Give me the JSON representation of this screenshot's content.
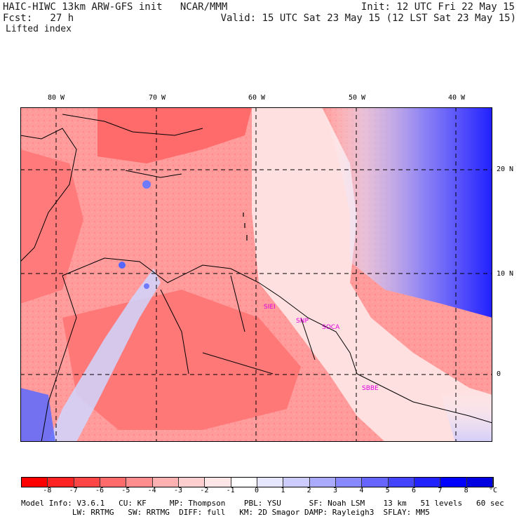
{
  "header": {
    "title_left": "HAIC-HIWC 13km ARW-GFS init   NCAR/MMM",
    "fcst_left": "Fcst:   27 h",
    "init_right": "Init: 12 UTC Fri 22 May 15",
    "valid_right": "Valid: 15 UTC Sat 23 May 15 (12 LST Sat 23 May 15)",
    "field_name": "Lifted index"
  },
  "map": {
    "lon_labels": [
      "80 W",
      "70 W",
      "60 W",
      "50 W",
      "40 W"
    ],
    "lat_labels": [
      "20 N",
      "10 N",
      "0"
    ],
    "stations": [
      "SIEI",
      "SNP",
      "SOCA",
      "SBBE"
    ]
  },
  "colorbar": {
    "ticks": [
      "-8",
      "-7",
      "-6",
      "-5",
      "-4",
      "-3",
      "-2",
      "-1",
      "0",
      "1",
      "2",
      "3",
      "4",
      "5",
      "6",
      "7",
      "8"
    ],
    "unit": "°C",
    "colors": [
      "#ff0000",
      "#ff2323",
      "#ff4646",
      "#ff6a6a",
      "#ff8d8d",
      "#ffb0b0",
      "#ffcece",
      "#ffe6e6",
      "#ffffff",
      "#e6e6ff",
      "#ccccff",
      "#aaaaff",
      "#8888ff",
      "#6666ff",
      "#4444ff",
      "#2222ff",
      "#0000ff",
      "#0000e0"
    ]
  },
  "footer": {
    "line1": "Model Info: V3.6.1   CU: KF     MP: Thompson    PBL: YSU      SF: Noah LSM    13 km   51 levels   60 sec",
    "line2": "           LW: RRTMG   SW: RRTMG  DIFF: full   KM: 2D Smagor DAMP: Rayleigh3  SFLAY: MM5"
  }
}
